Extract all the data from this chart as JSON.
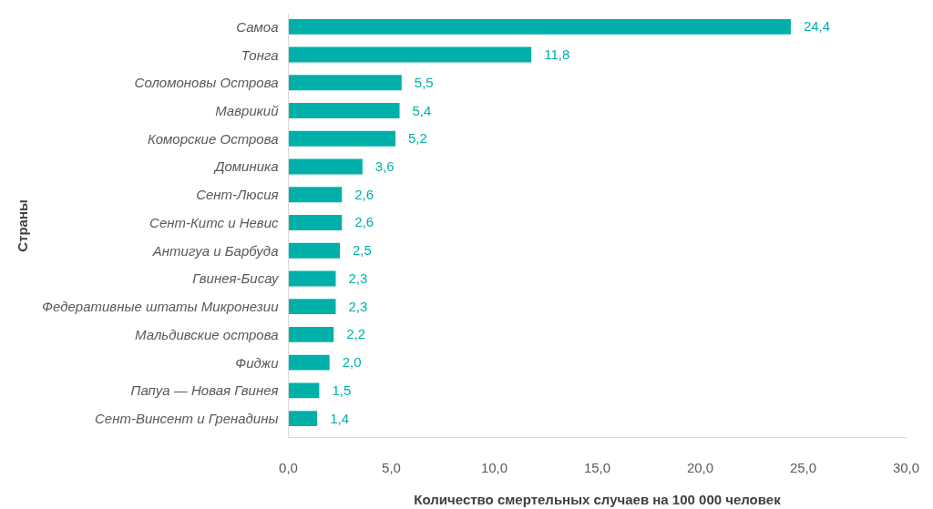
{
  "chart_data": {
    "type": "bar",
    "orientation": "horizontal",
    "xlabel": "Количество смертельных случаев на 100 000 человек",
    "ylabel": "Страны",
    "categories": [
      "Самоа",
      "Тонга",
      "Соломоновы Острова",
      "Маврикий",
      "Коморские Острова",
      "Доминика",
      "Сент-Люсия",
      "Сент-Китс и Невис",
      "Антигуа и Барбуда",
      "Гвинея-Бисау",
      "Федеративные штаты Микронезии",
      "Мальдивские острова",
      "Фиджи",
      "Папуа — Новая Гвинея",
      "Сент-Винсент и Гренадины"
    ],
    "values": [
      24.4,
      11.8,
      5.5,
      5.4,
      5.2,
      3.6,
      2.6,
      2.6,
      2.5,
      2.3,
      2.3,
      2.2,
      2.0,
      1.5,
      1.4
    ],
    "value_labels": [
      "24,4",
      "11,8",
      "5,5",
      "5,4",
      "5,2",
      "3,6",
      "2,6",
      "2,6",
      "2,5",
      "2,3",
      "2,3",
      "2,2",
      "2,0",
      "1,5",
      "1,4"
    ],
    "color": "#00b0a8",
    "xlim": [
      0,
      30
    ],
    "xticks": [
      {
        "value": 0,
        "label": "0,0"
      },
      {
        "value": 5,
        "label": "5,0"
      },
      {
        "value": 10,
        "label": "10,0"
      },
      {
        "value": 15,
        "label": "15,0"
      },
      {
        "value": 20,
        "label": "20,0"
      },
      {
        "value": 25,
        "label": "25,0"
      },
      {
        "value": 30,
        "label": "30,0"
      }
    ],
    "grid": false
  }
}
